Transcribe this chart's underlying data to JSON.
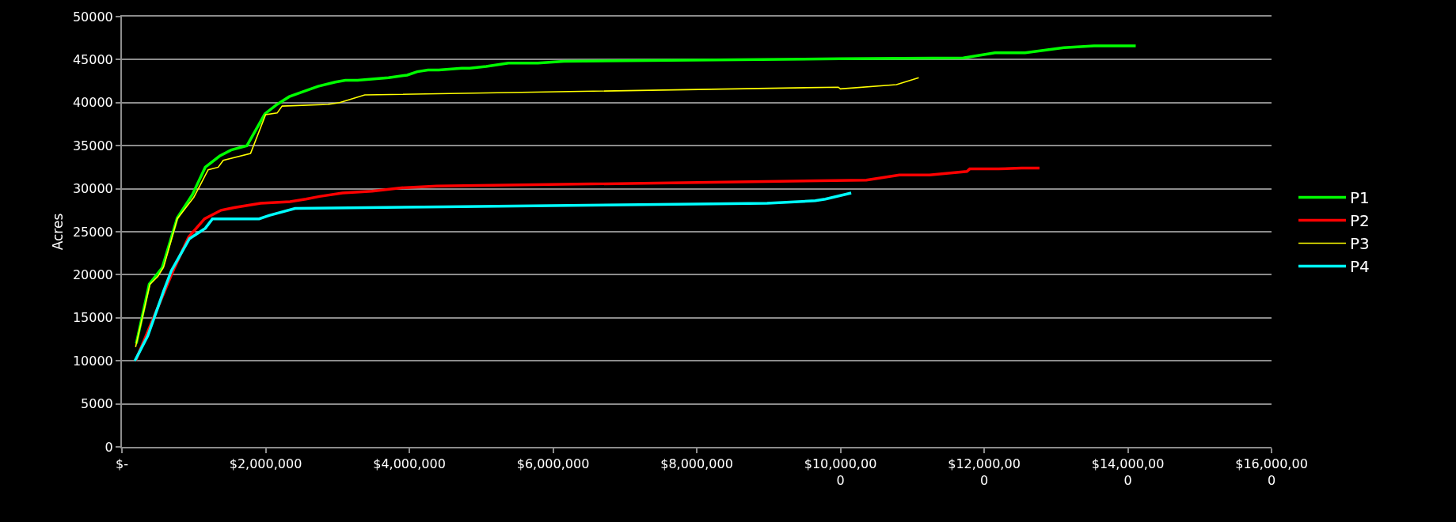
{
  "chart_data": {
    "type": "line",
    "ylabel": "Acres",
    "xlim": [
      0,
      16000000
    ],
    "xticks": [
      {
        "value": 0,
        "label": "$-"
      },
      {
        "value": 2000000,
        "label": "$2,000,000"
      },
      {
        "value": 4000000,
        "label": "$4,000,000"
      },
      {
        "value": 6000000,
        "label": "$6,000,000"
      },
      {
        "value": 8000000,
        "label": "$8,000,000"
      },
      {
        "value": 10000000,
        "label": "$10,000,000"
      },
      {
        "value": 12000000,
        "label": "$12,000,000"
      },
      {
        "value": 14000000,
        "label": "$14,000,000"
      },
      {
        "value": 16000000,
        "label": "$16,000,000"
      }
    ],
    "ylim": [
      0,
      50000
    ],
    "yticks": [
      0,
      5000,
      10000,
      15000,
      20000,
      25000,
      30000,
      35000,
      40000,
      45000,
      50000
    ],
    "grid": "y",
    "legend": "right",
    "marker": "none",
    "line_style": "solid",
    "series": [
      {
        "name": "P1",
        "color": "#00ff00",
        "x": [
          200000,
          380000,
          560000,
          770000,
          980000,
          1160000,
          1360000,
          1520000,
          1740000,
          1990000,
          2160000,
          2330000,
          2560000,
          2730000,
          2970000,
          3110000,
          3280000,
          3710000,
          3970000,
          4110000,
          4260000,
          4410000,
          4730000,
          4840000,
          5070000,
          5380000,
          5790000,
          6150000,
          9990000,
          11710000,
          12150000,
          12570000,
          13110000,
          13530000,
          14110000
        ],
        "values": [
          12000,
          18900,
          20800,
          26600,
          29300,
          32500,
          33800,
          34500,
          35000,
          38700,
          39800,
          40700,
          41400,
          41900,
          42400,
          42600,
          42600,
          42900,
          43200,
          43600,
          43800,
          43800,
          44000,
          44000,
          44200,
          44600,
          44600,
          44800,
          45100,
          45200,
          45800,
          45800,
          46400,
          46600,
          46600
        ]
      },
      {
        "name": "P2",
        "color": "#ff0000",
        "x": [
          190000,
          360000,
          580000,
          730000,
          930000,
          1150000,
          1380000,
          1560000,
          1930000,
          2340000,
          2560000,
          2750000,
          3070000,
          3480000,
          3890000,
          4380000,
          10360000,
          10820000,
          11240000,
          11760000,
          11800000,
          12200000,
          12520000,
          12770000
        ],
        "values": [
          10000,
          null,
          null,
          20800,
          24400,
          26500,
          27500,
          27800,
          28300,
          28500,
          28800,
          29100,
          29500,
          29700,
          30100,
          30300,
          31000,
          31600,
          31600,
          32000,
          32300,
          32300,
          32400,
          32400
        ]
      },
      {
        "name": "P3",
        "color": "#ffff00",
        "x": [
          190000,
          390000,
          500000,
          580000,
          770000,
          1000000,
          1200000,
          1340000,
          1410000,
          1790000,
          2000000,
          2160000,
          2230000,
          2870000,
          3030000,
          3380000,
          9970000,
          10000000,
          10780000,
          11090000
        ],
        "values": [
          11600,
          18900,
          19800,
          20900,
          26500,
          29000,
          32200,
          32500,
          33300,
          34100,
          38600,
          38800,
          39600,
          39800,
          40000,
          40900,
          41800,
          41600,
          42100,
          42900
        ]
      },
      {
        "name": "P4",
        "color": "#00ffff",
        "x": [
          180000,
          360000,
          580000,
          690000,
          940000,
          1160000,
          1260000,
          1910000,
          2050000,
          2410000,
          4480000,
          8980000,
          9650000,
          9790000,
          10150000
        ],
        "values": [
          10000,
          12900,
          18100,
          20500,
          24200,
          25400,
          26500,
          26500,
          26900,
          27700,
          27900,
          28300,
          28600,
          28800,
          29500
        ]
      }
    ]
  }
}
